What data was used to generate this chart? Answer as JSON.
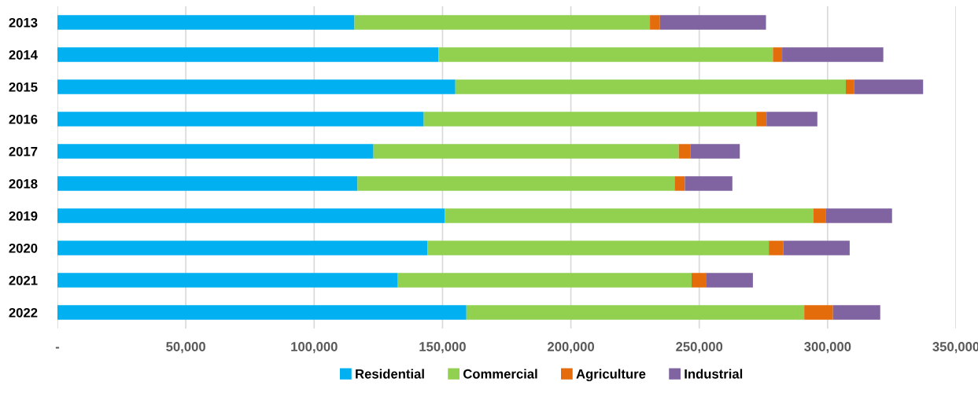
{
  "chart_data": {
    "type": "bar",
    "orientation": "horizontal",
    "stacked": true,
    "categories": [
      "2013",
      "2014",
      "2015",
      "2016",
      "2017",
      "2018",
      "2019",
      "2020",
      "2021",
      "2022"
    ],
    "series": [
      {
        "name": "Residential",
        "color": "#00b0f0",
        "values": [
          115700,
          148400,
          155000,
          142700,
          123100,
          116900,
          150900,
          144100,
          132400,
          159300
        ]
      },
      {
        "name": "Commercial",
        "color": "#92d050",
        "values": [
          115100,
          130300,
          152100,
          129500,
          118900,
          123500,
          143500,
          133000,
          114600,
          131600
        ]
      },
      {
        "name": "Agriculture",
        "color": "#e46c0a",
        "values": [
          3900,
          3600,
          3300,
          4000,
          4500,
          4000,
          4800,
          5600,
          5600,
          11200
        ]
      },
      {
        "name": "Industrial",
        "color": "#8064a2",
        "values": [
          41300,
          39400,
          26800,
          19800,
          19300,
          18500,
          25900,
          25900,
          18300,
          18400
        ]
      }
    ],
    "xlim": [
      0,
      350000
    ],
    "xticks": [
      {
        "value": 0,
        "label": "-"
      },
      {
        "value": 50000,
        "label": "50,000"
      },
      {
        "value": 100000,
        "label": "100,000"
      },
      {
        "value": 150000,
        "label": "150,000"
      },
      {
        "value": 200000,
        "label": "200,000"
      },
      {
        "value": 250000,
        "label": "250,000"
      },
      {
        "value": 300000,
        "label": "300,000"
      },
      {
        "value": 350000,
        "label": "350,000"
      }
    ],
    "grid": "x",
    "legend": "bottom"
  }
}
